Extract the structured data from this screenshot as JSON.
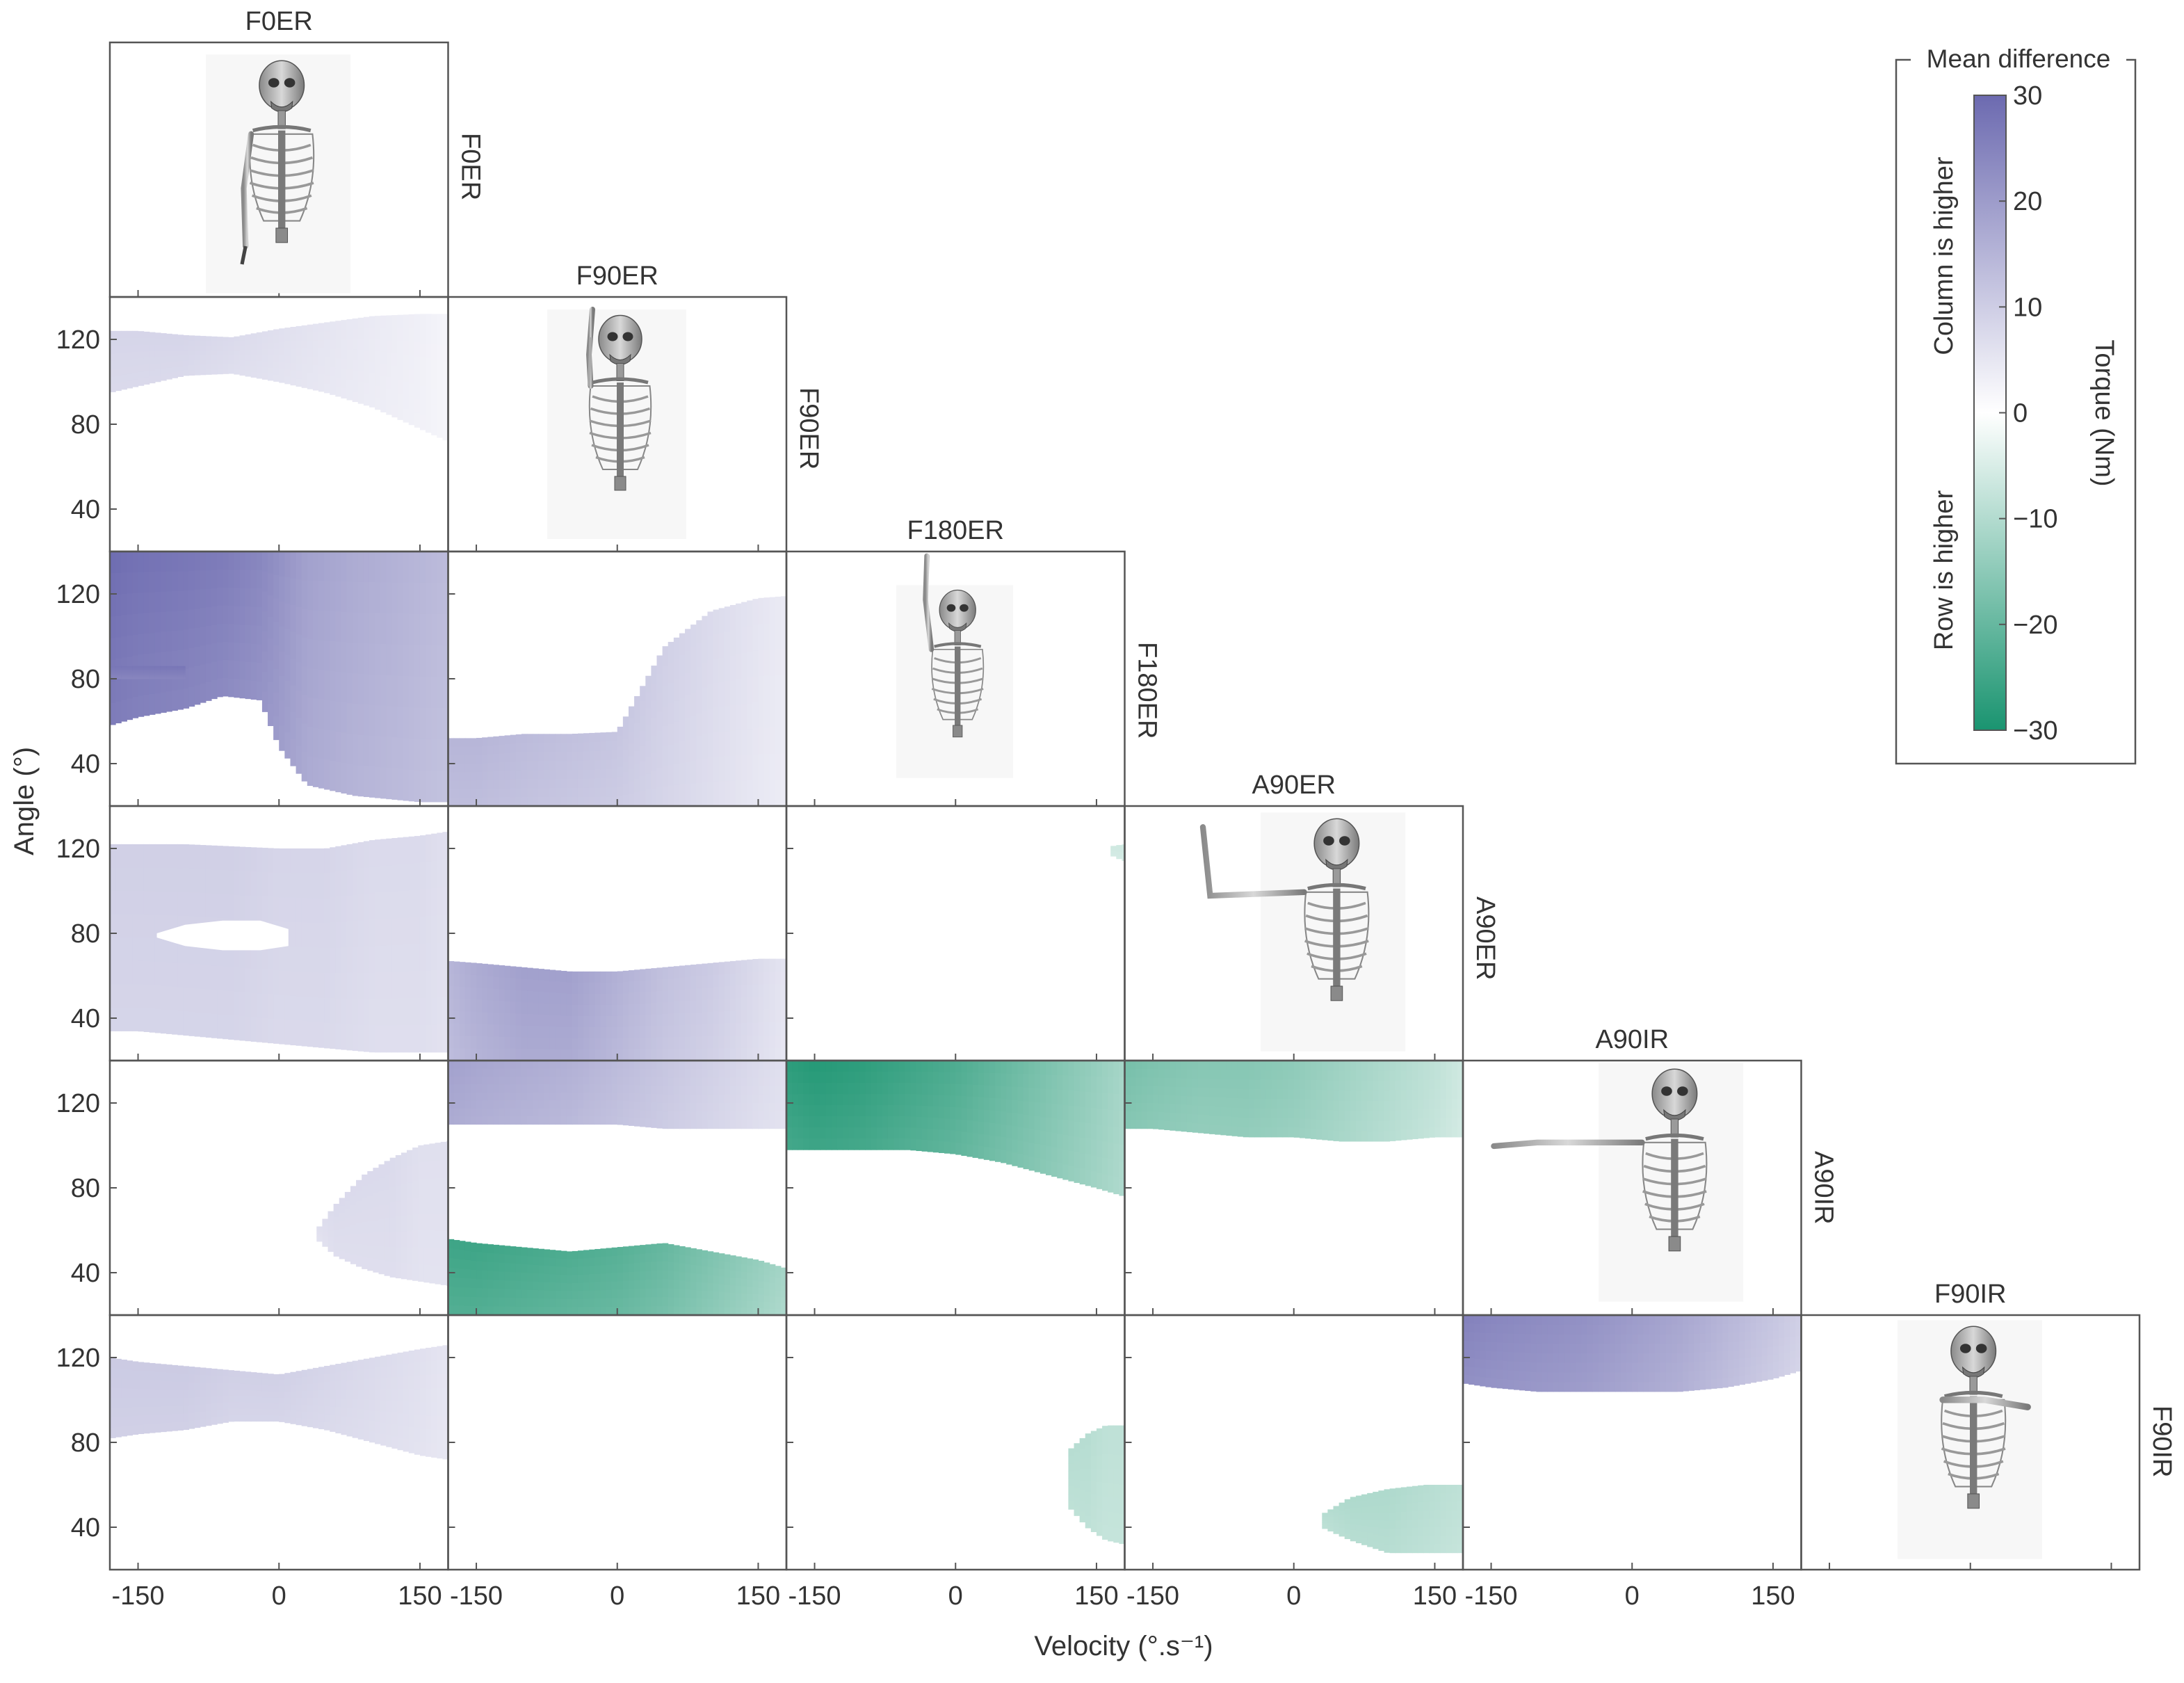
{
  "chart_data": {
    "type": "heatmap",
    "description_labels": [
      "F0ER",
      "F90ER",
      "F180ER",
      "A90ER",
      "A90IR",
      "F90IR"
    ],
    "conditions": [
      "F0ER",
      "F90ER",
      "F180ER",
      "A90ER",
      "A90IR",
      "F90IR"
    ],
    "xlabel": "Velocity (°.s⁻¹)",
    "ylabel": "Angle (°)",
    "xticks": [
      -150,
      0,
      150
    ],
    "xlim": [
      -180,
      180
    ],
    "yticks": [
      40,
      80,
      120
    ],
    "ylim": [
      20,
      140
    ],
    "colorbar": {
      "title": "Mean difference",
      "label": "Torque (Nm)",
      "ticks": [
        30,
        20,
        10,
        0,
        -10,
        -20,
        -30
      ],
      "range": [
        -30,
        30
      ],
      "upper_note": "Column is higher",
      "lower_note": "Row is higher",
      "color_max": "#6c6ab0",
      "color_zero": "#ffffff",
      "color_min": "#1a9470"
    },
    "cells": [
      {
        "row": 1,
        "col": 0,
        "mean_torque_nm": 8,
        "regions": [
          {
            "x": [
              -180,
              -150,
              -100,
              -50,
              0,
              50,
              100,
              150,
              180
            ],
            "lo": [
              95,
              98,
              103,
              104,
              100,
              95,
              88,
              78,
              72
            ],
            "hi": [
              124,
              124,
              122,
              121,
              125,
              128,
              131,
              132,
              132
            ],
            "v": [
              8,
              8,
              8,
              7,
              6,
              5,
              4,
              3,
              2
            ]
          }
        ]
      },
      {
        "row": 2,
        "col": 0,
        "mean_torque_nm": 22,
        "regions": [
          {
            "x": [
              -180,
              -150,
              -100,
              -60,
              -20,
              0,
              30,
              80,
              150,
              180
            ],
            "lo": [
              58,
              62,
              66,
              72,
              70,
              48,
              30,
              25,
              22,
              22
            ],
            "hi": [
              140,
              140,
              140,
              140,
              140,
              140,
              140,
              140,
              140,
              140
            ],
            "v": [
              28,
              27,
              26,
              25,
              23,
              21,
              18,
              16,
              14,
              13
            ]
          },
          {
            "x": [
              -180,
              -150,
              -100
            ],
            "lo": [
              80,
              80,
              80
            ],
            "hi": [
              86,
              86,
              86
            ],
            "v": [
              26,
              26,
              26
            ]
          }
        ]
      },
      {
        "row": 2,
        "col": 1,
        "mean_torque_nm": 10,
        "regions": [
          {
            "x": [
              -180,
              -150,
              -100,
              -50,
              0,
              50,
              100,
              150,
              180
            ],
            "lo": [
              20,
              20,
              20,
              20,
              20,
              20,
              20,
              20,
              20
            ],
            "hi": [
              52,
              52,
              54,
              54,
              55,
              95,
              112,
              118,
              119
            ],
            "v": [
              14,
              14,
              13,
              12,
              11,
              9,
              7,
              5,
              4
            ]
          }
        ]
      },
      {
        "row": 3,
        "col": 0,
        "mean_torque_nm": 9,
        "regions": [
          {
            "x": [
              -180,
              -150,
              -100,
              -50,
              0,
              50,
              100,
              150,
              180
            ],
            "lo": [
              34,
              34,
              32,
              30,
              28,
              26,
              24,
              24,
              24
            ],
            "hi": [
              122,
              122,
              122,
              121,
              120,
              120,
              124,
              126,
              128
            ],
            "v": [
              9,
              9,
              9,
              9,
              8,
              8,
              7,
              7,
              6
            ]
          }
        ],
        "holes": [
          {
            "x": [
              -130,
              -100,
              -60,
              -20,
              10
            ],
            "lo": [
              78,
              74,
              72,
              72,
              74
            ],
            "hi": [
              80,
              84,
              86,
              86,
              82
            ]
          }
        ]
      },
      {
        "row": 3,
        "col": 1,
        "mean_torque_nm": 10,
        "regions": [
          {
            "x": [
              -180,
              -150,
              -100,
              -50,
              0,
              50,
              100,
              150,
              180
            ],
            "lo": [
              20,
              20,
              20,
              20,
              20,
              20,
              20,
              20,
              20
            ],
            "hi": [
              67,
              66,
              64,
              62,
              62,
              64,
              66,
              68,
              68
            ],
            "v": [
              14,
              16,
              18,
              18,
              15,
              12,
              10,
              7,
              5
            ]
          }
        ]
      },
      {
        "row": 3,
        "col": 2,
        "mean_torque_nm": -5,
        "regions": [
          {
            "x": [
              165,
              180
            ],
            "lo": [
              117,
              114
            ],
            "hi": [
              121,
              122
            ],
            "v": [
              -6,
              -6
            ]
          }
        ]
      },
      {
        "row": 4,
        "col": 0,
        "mean_torque_nm": 6,
        "regions": [
          {
            "x": [
              40,
              60,
              90,
              120,
              150,
              180
            ],
            "lo": [
              56,
              48,
              42,
              38,
              36,
              34
            ],
            "hi": [
              60,
              72,
              86,
              94,
              100,
              102
            ],
            "v": [
              6,
              7,
              7,
              7,
              6,
              6
            ]
          }
        ]
      },
      {
        "row": 4,
        "col": 1,
        "mean_torque_nm": 3,
        "regions": [
          {
            "x": [
              -180,
              -150,
              -100,
              -50,
              0,
              50,
              100,
              150,
              180
            ],
            "lo": [
              110,
              110,
              110,
              110,
              110,
              108,
              108,
              108,
              108
            ],
            "hi": [
              140,
              140,
              140,
              140,
              140,
              140,
              140,
              140,
              140
            ],
            "v": [
              18,
              17,
              16,
              15,
              13,
              11,
              9,
              7,
              6
            ]
          },
          {
            "x": [
              -180,
              -150,
              -100,
              -50,
              0,
              50,
              100,
              150,
              180
            ],
            "lo": [
              20,
              20,
              20,
              20,
              20,
              20,
              20,
              20,
              20
            ],
            "hi": [
              56,
              54,
              52,
              50,
              52,
              54,
              50,
              46,
              42
            ],
            "v": [
              -24,
              -24,
              -23,
              -22,
              -21,
              -19,
              -16,
              -13,
              -11
            ]
          }
        ]
      },
      {
        "row": 4,
        "col": 2,
        "mean_torque_nm": -20,
        "regions": [
          {
            "x": [
              -180,
              -150,
              -100,
              -50,
              0,
              50,
              100,
              150,
              180
            ],
            "lo": [
              98,
              98,
              98,
              98,
              96,
              92,
              86,
              80,
              76
            ],
            "hi": [
              140,
              140,
              140,
              140,
              140,
              140,
              140,
              140,
              140
            ],
            "v": [
              -26,
              -27,
              -26,
              -24,
              -22,
              -19,
              -16,
              -13,
              -11
            ]
          }
        ]
      },
      {
        "row": 4,
        "col": 3,
        "mean_torque_nm": -15,
        "regions": [
          {
            "x": [
              -180,
              -150,
              -100,
              -50,
              0,
              50,
              100,
              150,
              180
            ],
            "lo": [
              108,
              108,
              106,
              104,
              104,
              102,
              102,
              104,
              104
            ],
            "hi": [
              140,
              140,
              140,
              140,
              140,
              140,
              140,
              140,
              140
            ],
            "v": [
              -17,
              -16,
              -15,
              -15,
              -14,
              -12,
              -10,
              -8,
              -6
            ]
          }
        ]
      },
      {
        "row": 5,
        "col": 0,
        "mean_torque_nm": 9,
        "regions": [
          {
            "x": [
              -180,
              -150,
              -100,
              -50,
              0,
              50,
              100,
              150,
              180
            ],
            "lo": [
              82,
              84,
              86,
              90,
              90,
              86,
              80,
              74,
              72
            ],
            "hi": [
              120,
              118,
              116,
              114,
              112,
              116,
              120,
              124,
              126
            ],
            "v": [
              10,
              10,
              10,
              9,
              9,
              8,
              7,
              6,
              5
            ]
          }
        ]
      },
      {
        "row": 5,
        "col": 2,
        "mean_torque_nm": -8,
        "regions": [
          {
            "x": [
              120,
              140,
              160,
              180
            ],
            "lo": [
              50,
              40,
              34,
              32
            ],
            "hi": [
              76,
              84,
              88,
              88
            ],
            "v": [
              -9,
              -9,
              -8,
              -8
            ]
          }
        ]
      },
      {
        "row": 5,
        "col": 3,
        "mean_torque_nm": -9,
        "regions": [
          {
            "x": [
              30,
              60,
              100,
              140,
              180
            ],
            "lo": [
              40,
              34,
              28,
              28,
              28
            ],
            "hi": [
              46,
              54,
              58,
              60,
              60
            ],
            "v": [
              -9,
              -10,
              -10,
              -9,
              -8
            ]
          }
        ]
      },
      {
        "row": 5,
        "col": 4,
        "mean_torque_nm": 18,
        "regions": [
          {
            "x": [
              -180,
              -150,
              -100,
              -50,
              0,
              50,
              100,
              150,
              180
            ],
            "lo": [
              108,
              106,
              104,
              104,
              104,
              104,
              106,
              110,
              114
            ],
            "hi": [
              140,
              140,
              140,
              140,
              140,
              140,
              140,
              140,
              140
            ],
            "v": [
              24,
              23,
              22,
              21,
              19,
              17,
              14,
              11,
              9
            ]
          }
        ]
      }
    ]
  }
}
